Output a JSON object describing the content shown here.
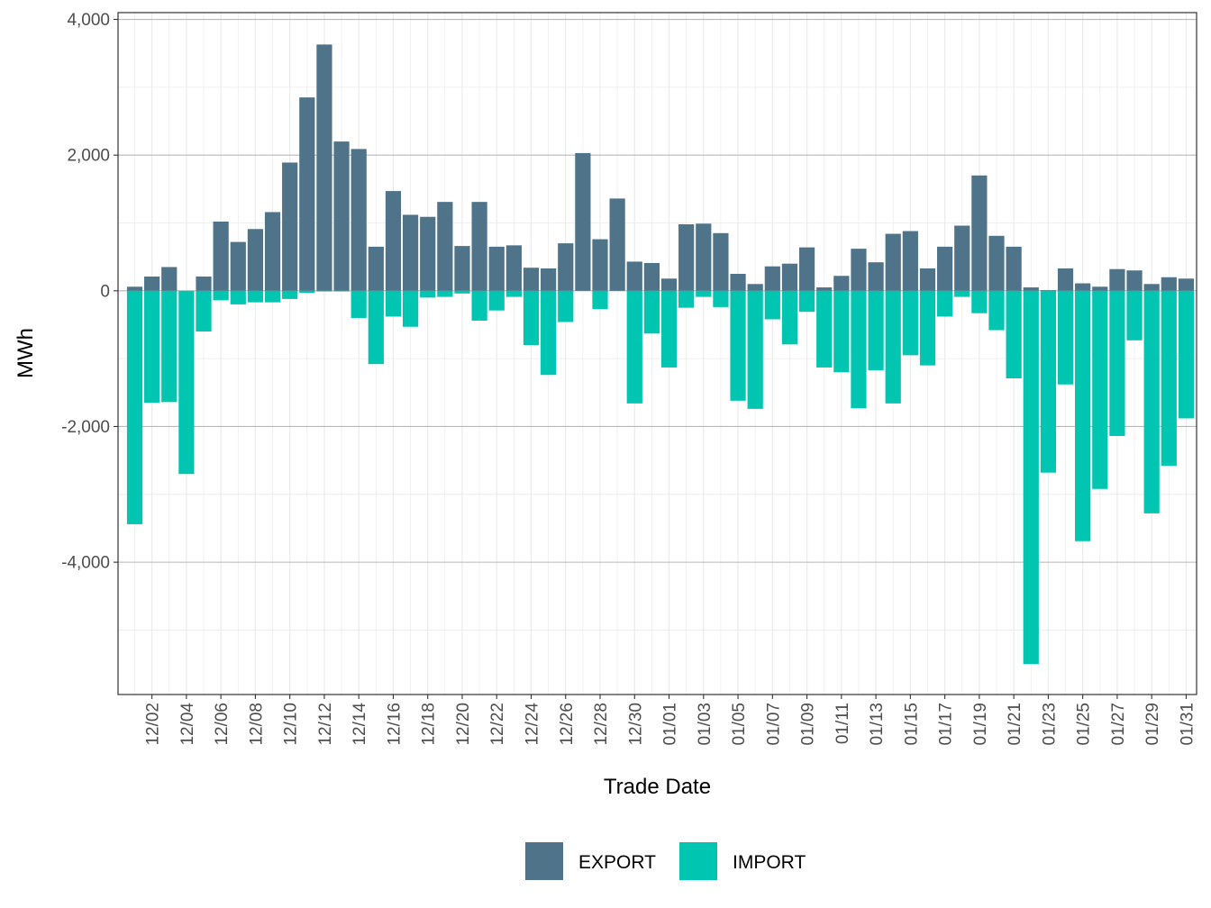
{
  "chart_data": {
    "type": "bar",
    "stacked": true,
    "xlabel": "Trade Date",
    "ylabel": "MWh",
    "ylim": [
      -5950,
      4100
    ],
    "yticks": [
      -4000,
      -2000,
      0,
      2000,
      4000
    ],
    "ytick_labels": [
      "-4,000",
      "-2,000",
      "0",
      "2,000",
      "4,000"
    ],
    "grid": true,
    "legend": "bottom",
    "categories": [
      "12/01",
      "12/02",
      "12/03",
      "12/04",
      "12/05",
      "12/06",
      "12/07",
      "12/08",
      "12/09",
      "12/10",
      "12/11",
      "12/12",
      "12/13",
      "12/14",
      "12/15",
      "12/16",
      "12/17",
      "12/18",
      "12/19",
      "12/20",
      "12/21",
      "12/22",
      "12/23",
      "12/24",
      "12/25",
      "12/26",
      "12/27",
      "12/28",
      "12/29",
      "12/30",
      "12/31",
      "01/01",
      "01/02",
      "01/03",
      "01/04",
      "01/05",
      "01/06",
      "01/07",
      "01/08",
      "01/09",
      "01/10",
      "01/11",
      "01/12",
      "01/13",
      "01/14",
      "01/15",
      "01/16",
      "01/17",
      "01/18",
      "01/19",
      "01/20",
      "01/21",
      "01/22",
      "01/23",
      "01/24",
      "01/25",
      "01/26",
      "01/27",
      "01/28",
      "01/29",
      "01/30",
      "01/31"
    ],
    "xtick_labels": [
      "12/02",
      "12/04",
      "12/06",
      "12/08",
      "12/10",
      "12/12",
      "12/14",
      "12/16",
      "12/18",
      "12/20",
      "12/22",
      "12/24",
      "12/26",
      "12/28",
      "12/30",
      "01/01",
      "01/03",
      "01/05",
      "01/07",
      "01/09",
      "01/11",
      "01/13",
      "01/15",
      "01/17",
      "01/19",
      "01/21",
      "01/23",
      "01/25",
      "01/27",
      "01/29",
      "01/31"
    ],
    "series": [
      {
        "name": "EXPORT",
        "color": "#4f7388",
        "values": [
          60,
          210,
          350,
          0,
          210,
          1020,
          720,
          910,
          1160,
          1890,
          2850,
          3630,
          2200,
          2090,
          650,
          1470,
          1120,
          1090,
          1310,
          660,
          1310,
          650,
          670,
          340,
          330,
          700,
          2030,
          760,
          1360,
          430,
          410,
          180,
          980,
          990,
          850,
          250,
          100,
          360,
          400,
          640,
          50,
          220,
          620,
          420,
          840,
          880,
          330,
          650,
          960,
          1700,
          810,
          650,
          50,
          10,
          330,
          110,
          60,
          320,
          300,
          100,
          200,
          180
        ]
      },
      {
        "name": "IMPORT",
        "color": "#00c5b0",
        "values": [
          -3440,
          -1650,
          -1640,
          -2700,
          -600,
          -140,
          -200,
          -170,
          -170,
          -120,
          -30,
          -10,
          -10,
          -400,
          -1080,
          -380,
          -530,
          -100,
          -90,
          -40,
          -440,
          -290,
          -90,
          -800,
          -1240,
          -460,
          0,
          -270,
          0,
          -1660,
          -630,
          -1130,
          -250,
          -90,
          -240,
          -1620,
          -1740,
          -420,
          -790,
          -310,
          -1130,
          -1200,
          -1730,
          -1170,
          -1660,
          -950,
          -1100,
          -380,
          -90,
          -330,
          -580,
          -1290,
          -5500,
          -2680,
          -1380,
          -3690,
          -2920,
          -2140,
          -730,
          -3280,
          -2580,
          -1880
        ]
      }
    ]
  }
}
